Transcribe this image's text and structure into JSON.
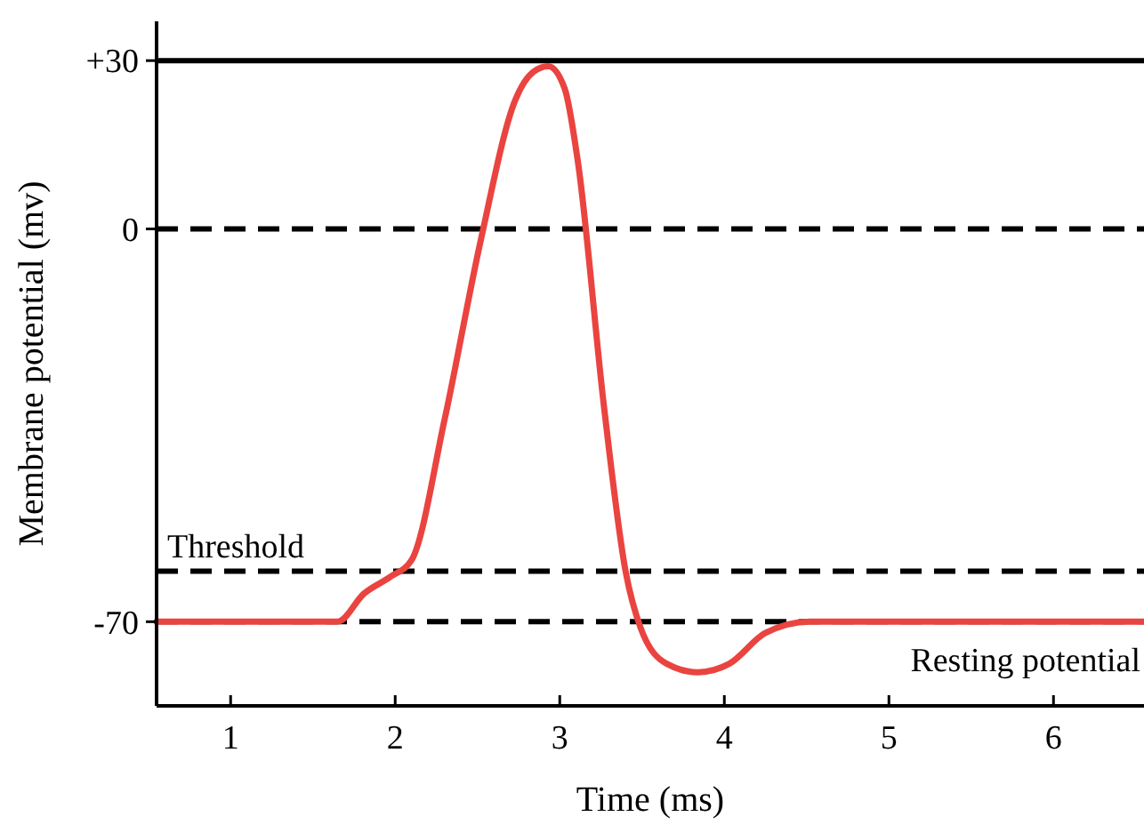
{
  "chart_data": {
    "type": "line",
    "xlabel": "Time (ms)",
    "ylabel": "Membrane potential (mv)",
    "xlim": [
      0.55,
      6.55
    ],
    "ylim": [
      -85,
      37
    ],
    "xticks": [
      1,
      2,
      3,
      4,
      5,
      6
    ],
    "yticks": [
      {
        "value": 30,
        "label": "+30"
      },
      0,
      -70
    ],
    "grid": false,
    "marker": "none",
    "line_style": "solid",
    "series": [
      {
        "color": "#ea4440",
        "x": [
          0.55,
          1.65,
          1.81,
          1.97,
          2.1,
          2.3,
          2.52,
          2.73,
          2.84,
          2.93,
          3.03,
          3.11,
          3.27,
          3.4,
          3.49,
          3.65,
          3.84,
          4.03,
          4.25,
          4.52,
          6.55
        ],
        "values": [
          -70,
          -70,
          -65,
          -62,
          -59,
          -34,
          -2,
          23,
          28,
          29,
          25,
          12,
          -32,
          -61,
          -71,
          -77.5,
          -79,
          -77.5,
          -72,
          -70,
          -70
        ]
      }
    ],
    "ref_lines": [
      {
        "axis": "y",
        "value": 30,
        "label": null,
        "color": "#000000",
        "line_style": "solid"
      },
      {
        "axis": "y",
        "value": 0,
        "label": null,
        "color": "#000000",
        "line_style": "dashed"
      },
      {
        "axis": "y",
        "value": -61,
        "label": "Threshold",
        "color": "#000000",
        "line_style": "dashed"
      },
      {
        "axis": "y",
        "value": -70,
        "label": "Resting potential",
        "color": "#000000",
        "line_style": "dashed"
      }
    ]
  }
}
